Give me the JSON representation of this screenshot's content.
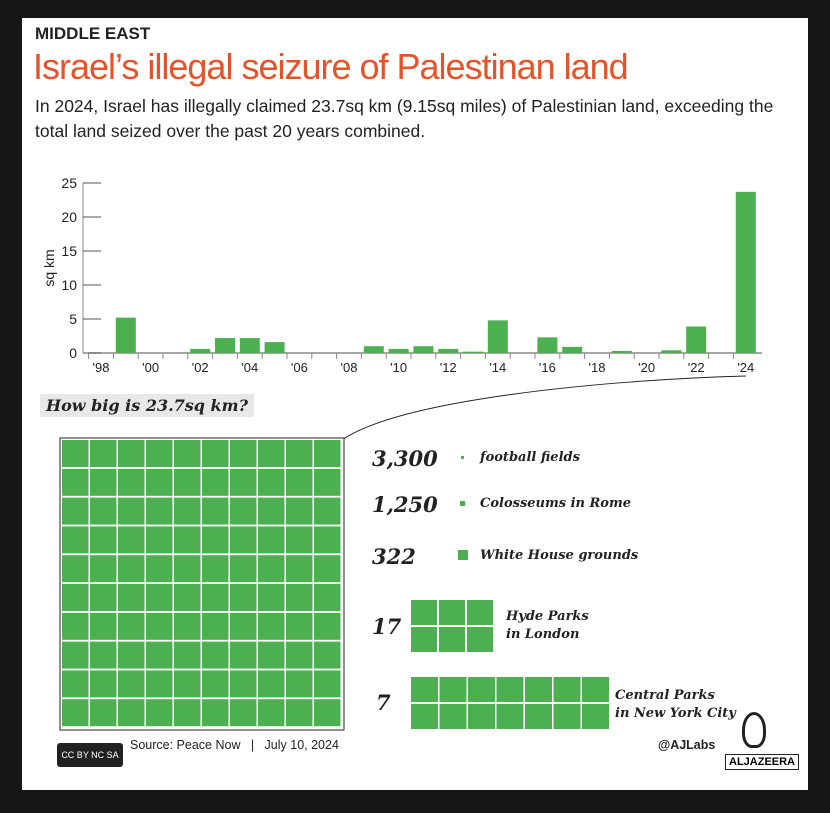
{
  "header": {
    "kicker": "MIDDLE EAST",
    "title": "Israel’s illegal seizure of Palestinan land",
    "subtitle": "In 2024, Israel has illegally claimed 23.7sq km (9.15sq miles) of Palestinian land, exceeding the total land seized over the past 20 years combined."
  },
  "chart_data": {
    "type": "bar",
    "title": "",
    "xlabel": "",
    "ylabel": "sq km",
    "ylim": [
      0,
      25
    ],
    "yticks": [
      0,
      5,
      10,
      15,
      20,
      25
    ],
    "categories": [
      1998,
      1999,
      2000,
      2001,
      2002,
      2003,
      2004,
      2005,
      2006,
      2007,
      2008,
      2009,
      2010,
      2011,
      2012,
      2013,
      2014,
      2015,
      2016,
      2017,
      2018,
      2019,
      2020,
      2021,
      2022,
      2023,
      2024
    ],
    "xtick_labels": [
      "'98",
      "'00",
      "'02",
      "'04",
      "'06",
      "'08",
      "'10",
      "'12",
      "'14",
      "'16",
      "'18",
      "'20",
      "'22",
      "'24"
    ],
    "values": [
      0,
      5.2,
      0,
      0,
      0.6,
      2.2,
      2.2,
      1.6,
      0,
      0,
      0,
      1.0,
      0.6,
      1.0,
      0.6,
      0.2,
      4.8,
      0,
      2.3,
      0.9,
      0,
      0.3,
      0,
      0.4,
      3.9,
      0,
      23.7
    ],
    "color": "#4caf50",
    "grid": false
  },
  "comparison": {
    "question": "How big is 23.7sq km?",
    "items": [
      {
        "count": "3,300",
        "label": "football fields"
      },
      {
        "count": "1,250",
        "label": "Colosseums in Rome"
      },
      {
        "count": "322",
        "label": "White House grounds"
      },
      {
        "count": "17",
        "label": "Hyde Parks\nin London"
      },
      {
        "count": "7",
        "label": "Central Parks\nin New York City"
      }
    ]
  },
  "footer": {
    "license": "CC BY NC SA",
    "source": "Source: Peace Now   |   July 10, 2024",
    "handle": "@AJLabs",
    "brand": "ALJAZEERA"
  }
}
